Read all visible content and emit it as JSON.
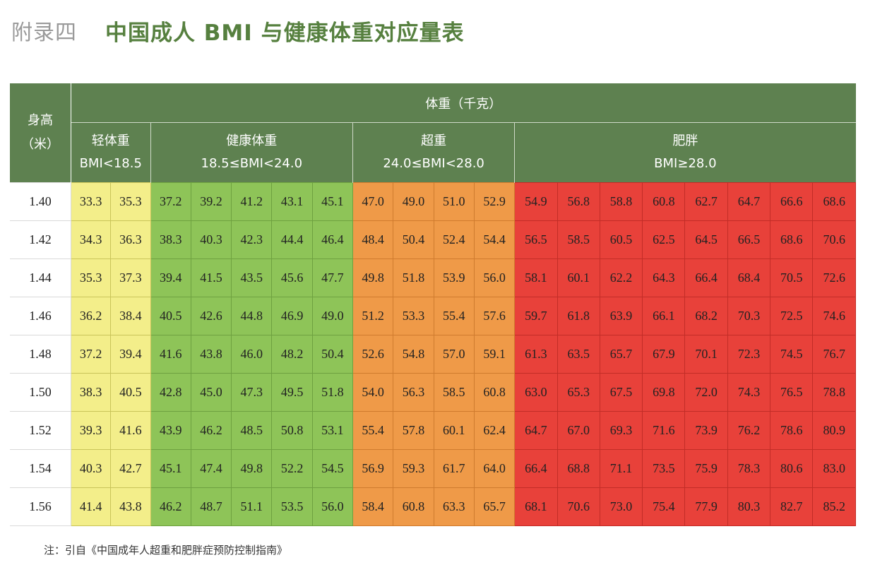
{
  "header": {
    "appendix_label": "附录四",
    "title": "中国成人 BMI 与健康体重对应量表"
  },
  "table": {
    "height_header": "身高\n（米）",
    "weight_header": "体重（千克）",
    "categories": [
      {
        "key": "under",
        "name": "轻体重",
        "range": "BMI<18.5",
        "color": "#f3ee8a"
      },
      {
        "key": "normal",
        "name": "健康体重",
        "range": "18.5≤BMI<24.0",
        "color": "#8ec458"
      },
      {
        "key": "over",
        "name": "超重",
        "range": "24.0≤BMI<28.0",
        "color": "#ef9a48"
      },
      {
        "key": "obese",
        "name": "肥胖",
        "range": "BMI≥28.0",
        "color": "#e8413a"
      }
    ],
    "header_color": "#5e8150",
    "rows": [
      {
        "height": "1.40",
        "under": [
          "33.3",
          "35.3"
        ],
        "normal": [
          "37.2",
          "39.2",
          "41.2",
          "43.1",
          "45.1"
        ],
        "over": [
          "47.0",
          "49.0",
          "51.0",
          "52.9"
        ],
        "obese": [
          "54.9",
          "56.8",
          "58.8",
          "60.8",
          "62.7",
          "64.7",
          "66.6",
          "68.6"
        ]
      },
      {
        "height": "1.42",
        "under": [
          "34.3",
          "36.3"
        ],
        "normal": [
          "38.3",
          "40.3",
          "42.3",
          "44.4",
          "46.4"
        ],
        "over": [
          "48.4",
          "50.4",
          "52.4",
          "54.4"
        ],
        "obese": [
          "56.5",
          "58.5",
          "60.5",
          "62.5",
          "64.5",
          "66.5",
          "68.6",
          "70.6"
        ]
      },
      {
        "height": "1.44",
        "under": [
          "35.3",
          "37.3"
        ],
        "normal": [
          "39.4",
          "41.5",
          "43.5",
          "45.6",
          "47.7"
        ],
        "over": [
          "49.8",
          "51.8",
          "53.9",
          "56.0"
        ],
        "obese": [
          "58.1",
          "60.1",
          "62.2",
          "64.3",
          "66.4",
          "68.4",
          "70.5",
          "72.6"
        ]
      },
      {
        "height": "1.46",
        "under": [
          "36.2",
          "38.4"
        ],
        "normal": [
          "40.5",
          "42.6",
          "44.8",
          "46.9",
          "49.0"
        ],
        "over": [
          "51.2",
          "53.3",
          "55.4",
          "57.6"
        ],
        "obese": [
          "59.7",
          "61.8",
          "63.9",
          "66.1",
          "68.2",
          "70.3",
          "72.5",
          "74.6"
        ]
      },
      {
        "height": "1.48",
        "under": [
          "37.2",
          "39.4"
        ],
        "normal": [
          "41.6",
          "43.8",
          "46.0",
          "48.2",
          "50.4"
        ],
        "over": [
          "52.6",
          "54.8",
          "57.0",
          "59.1"
        ],
        "obese": [
          "61.3",
          "63.5",
          "65.7",
          "67.9",
          "70.1",
          "72.3",
          "74.5",
          "76.7"
        ]
      },
      {
        "height": "1.50",
        "under": [
          "38.3",
          "40.5"
        ],
        "normal": [
          "42.8",
          "45.0",
          "47.3",
          "49.5",
          "51.8"
        ],
        "over": [
          "54.0",
          "56.3",
          "58.5",
          "60.8"
        ],
        "obese": [
          "63.0",
          "65.3",
          "67.5",
          "69.8",
          "72.0",
          "74.3",
          "76.5",
          "78.8"
        ]
      },
      {
        "height": "1.52",
        "under": [
          "39.3",
          "41.6"
        ],
        "normal": [
          "43.9",
          "46.2",
          "48.5",
          "50.8",
          "53.1"
        ],
        "over": [
          "55.4",
          "57.8",
          "60.1",
          "62.4"
        ],
        "obese": [
          "64.7",
          "67.0",
          "69.3",
          "71.6",
          "73.9",
          "76.2",
          "78.6",
          "80.9"
        ]
      },
      {
        "height": "1.54",
        "under": [
          "40.3",
          "42.7"
        ],
        "normal": [
          "45.1",
          "47.4",
          "49.8",
          "52.2",
          "54.5"
        ],
        "over": [
          "56.9",
          "59.3",
          "61.7",
          "64.0"
        ],
        "obese": [
          "66.4",
          "68.8",
          "71.1",
          "73.5",
          "75.9",
          "78.3",
          "80.6",
          "83.0"
        ]
      },
      {
        "height": "1.56",
        "under": [
          "41.4",
          "43.8"
        ],
        "normal": [
          "46.2",
          "48.7",
          "51.1",
          "53.5",
          "56.0"
        ],
        "over": [
          "58.4",
          "60.8",
          "63.3",
          "65.7"
        ],
        "obese": [
          "68.1",
          "70.6",
          "73.0",
          "75.4",
          "77.9",
          "80.3",
          "82.7",
          "85.2"
        ]
      }
    ]
  },
  "footnote": "注：引自《中国成年人超重和肥胖症预防控制指南》"
}
